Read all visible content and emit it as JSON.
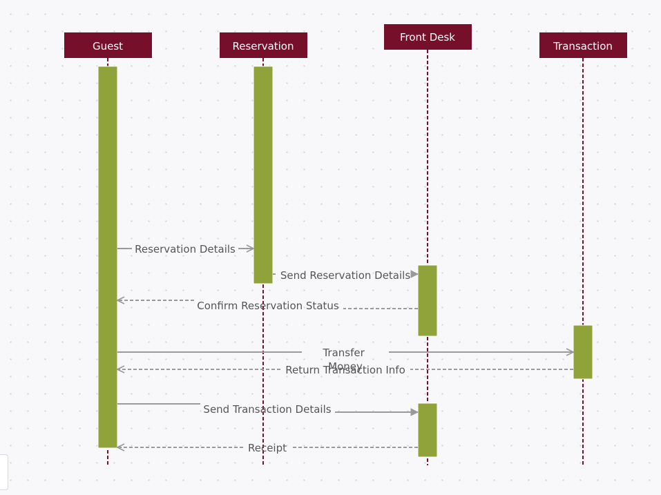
{
  "colors": {
    "header_fill": "#76102a",
    "header_text": "#ffffff",
    "lifeline": "#76102a",
    "activation": "#8fa33a",
    "arrow": "#9a9a9a",
    "label": "#555555"
  },
  "participants": [
    {
      "id": "guest",
      "name": "Guest"
    },
    {
      "id": "reservation",
      "name": "Reservation"
    },
    {
      "id": "front_desk",
      "name": "Front Desk"
    },
    {
      "id": "transaction",
      "name": "Transaction"
    }
  ],
  "messages": [
    {
      "id": "reservation_details",
      "from": "guest",
      "to": "reservation",
      "label": "Reservation Details",
      "style": "solid"
    },
    {
      "id": "send_reservation_details",
      "from": "reservation",
      "to": "front_desk",
      "label": "Send Reservation Details",
      "style": "dashed"
    },
    {
      "id": "confirm_reservation_status",
      "from": "front_desk",
      "to": "guest",
      "label": "Confirm Reservation Status",
      "style": "dashed"
    },
    {
      "id": "transfer_money",
      "from": "guest",
      "to": "transaction",
      "label": "Transfer Money",
      "style": "solid"
    },
    {
      "id": "return_transaction_info",
      "from": "transaction",
      "to": "guest",
      "label": "Return Transaction Info",
      "style": "dashed"
    },
    {
      "id": "send_transaction_details",
      "from": "guest",
      "to": "front_desk",
      "label": "Send Transaction Details",
      "style": "solid"
    },
    {
      "id": "receipt",
      "from": "front_desk",
      "to": "guest",
      "label": "Receipt",
      "style": "dashed"
    }
  ]
}
